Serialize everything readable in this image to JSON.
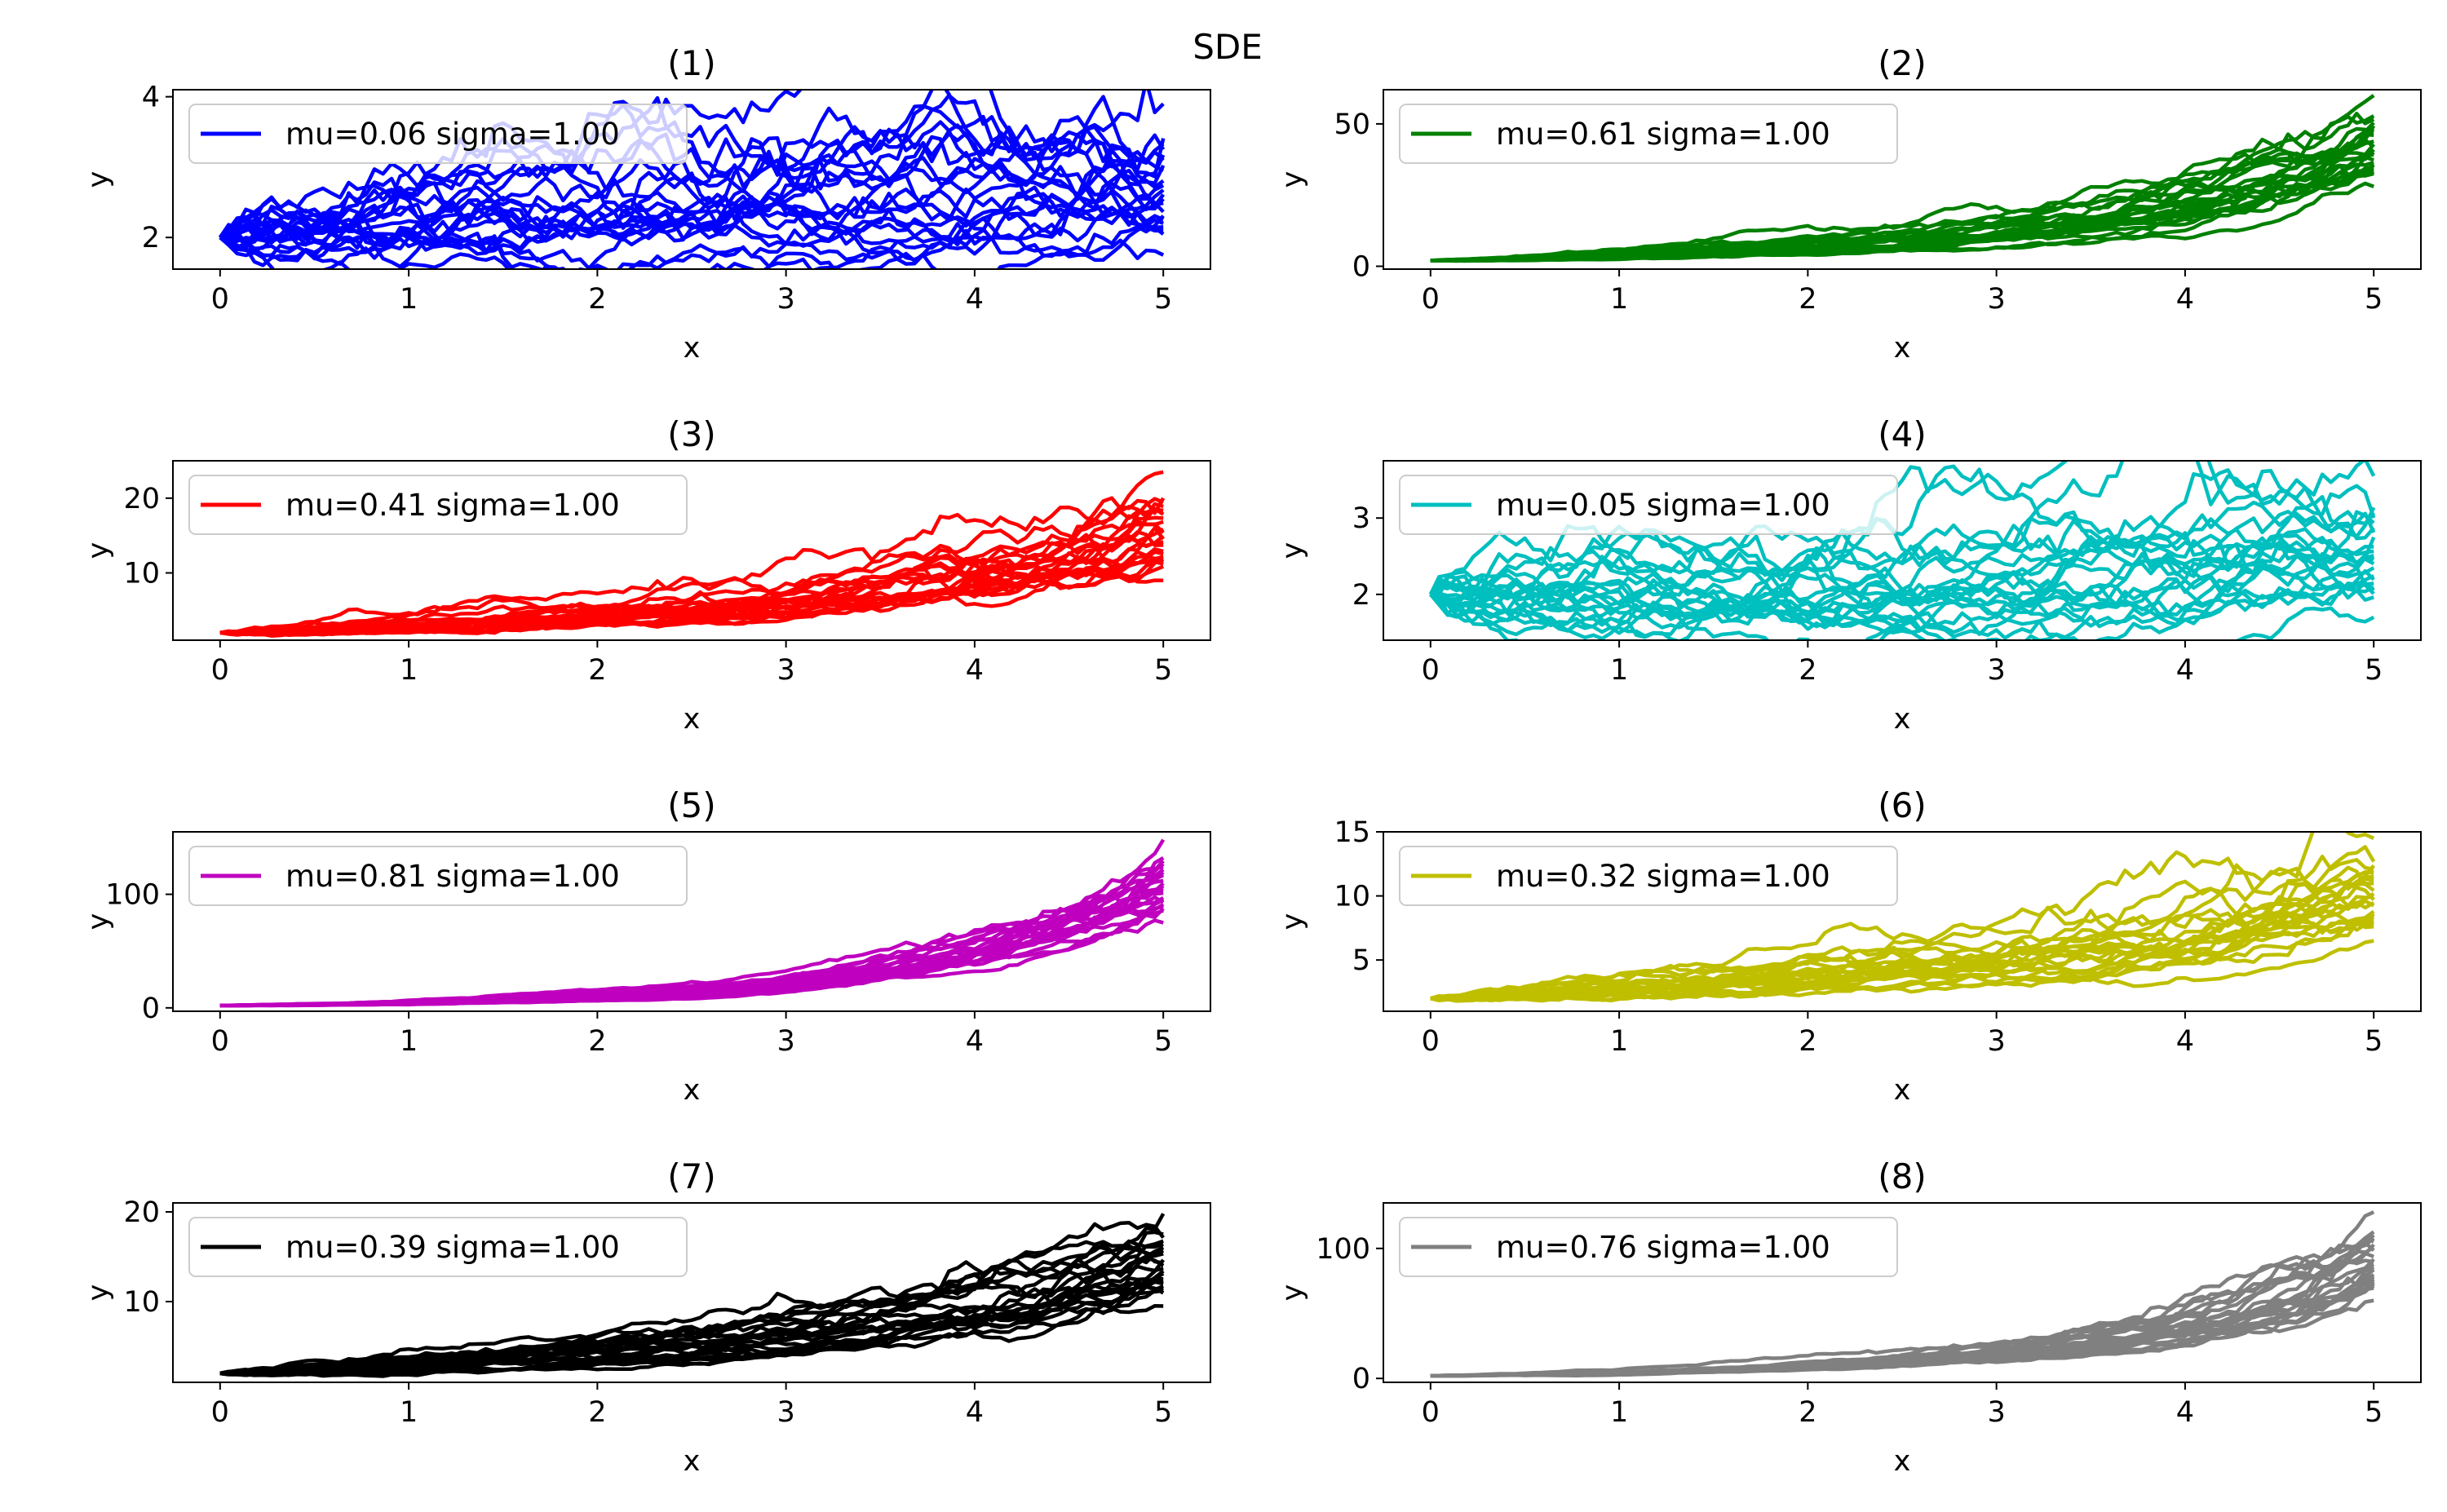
{
  "figure": {
    "title": "SDE"
  },
  "chart_data": [
    {
      "type": "line",
      "title": "(1)",
      "xlabel": "x",
      "ylabel": "y",
      "xlim": [
        -0.25,
        5.25
      ],
      "ylim": [
        1.55,
        4.1
      ],
      "xticks": [
        "0",
        "1",
        "2",
        "3",
        "4",
        "5"
      ],
      "yticks": [
        "2",
        "4"
      ],
      "yticks_values": [
        2,
        4
      ],
      "legend": "top-left",
      "color": "#0000ff",
      "series": [
        {
          "name": "mu=0.06 sigma=1.00",
          "x0": 0,
          "y0": 2.0,
          "end_max": 3.9,
          "end_min": 1.75,
          "end_median": 2.7
        }
      ]
    },
    {
      "type": "line",
      "title": "(2)",
      "xlabel": "x",
      "ylabel": "y",
      "xlim": [
        -0.25,
        5.25
      ],
      "ylim": [
        -1,
        62
      ],
      "xticks": [
        "0",
        "1",
        "2",
        "3",
        "4",
        "5"
      ],
      "yticks": [
        "0",
        "50"
      ],
      "yticks_values": [
        0,
        50
      ],
      "legend": "top-left",
      "color": "#008000",
      "series": [
        {
          "name": "mu=0.61 sigma=1.00",
          "x0": 0,
          "y0": 2.0,
          "end_max": 60,
          "end_min": 28,
          "end_median": 42
        }
      ]
    },
    {
      "type": "line",
      "title": "(3)",
      "xlabel": "x",
      "ylabel": "y",
      "xlim": [
        -0.25,
        5.25
      ],
      "ylim": [
        1,
        25
      ],
      "xticks": [
        "0",
        "1",
        "2",
        "3",
        "4",
        "5"
      ],
      "yticks": [
        "10",
        "20"
      ],
      "yticks_values": [
        10,
        20
      ],
      "legend": "top-left",
      "color": "#ff0000",
      "series": [
        {
          "name": "mu=0.41 sigma=1.00",
          "x0": 0,
          "y0": 2.0,
          "end_max": 23.5,
          "end_min": 9,
          "end_median": 15
        }
      ]
    },
    {
      "type": "line",
      "title": "(4)",
      "xlabel": "x",
      "ylabel": "y",
      "xlim": [
        -0.25,
        5.25
      ],
      "ylim": [
        1.4,
        3.75
      ],
      "xticks": [
        "0",
        "1",
        "2",
        "3",
        "4",
        "5"
      ],
      "yticks": [
        "2",
        "3"
      ],
      "yticks_values": [
        2,
        3
      ],
      "legend": "top-left",
      "color": "#00bfbf",
      "series": [
        {
          "name": "mu=0.05 sigma=1.00",
          "x0": 0,
          "y0": 2.0,
          "end_max": 3.55,
          "end_min": 1.7,
          "end_median": 2.5
        }
      ]
    },
    {
      "type": "line",
      "title": "(5)",
      "xlabel": "x",
      "ylabel": "y",
      "xlim": [
        -0.25,
        5.25
      ],
      "ylim": [
        -3,
        155
      ],
      "xticks": [
        "0",
        "1",
        "2",
        "3",
        "4",
        "5"
      ],
      "yticks": [
        "0",
        "100"
      ],
      "yticks_values": [
        0,
        100
      ],
      "legend": "top-left",
      "color": "#bf00bf",
      "series": [
        {
          "name": "mu=0.81 sigma=1.00",
          "x0": 0,
          "y0": 2.0,
          "end_max": 148,
          "end_min": 75,
          "end_median": 105
        }
      ]
    },
    {
      "type": "line",
      "title": "(6)",
      "xlabel": "x",
      "ylabel": "y",
      "xlim": [
        -0.25,
        5.25
      ],
      "ylim": [
        1,
        15
      ],
      "xticks": [
        "0",
        "1",
        "2",
        "3",
        "4",
        "5"
      ],
      "yticks": [
        "5",
        "10",
        "15"
      ],
      "yticks_values": [
        5,
        10,
        15
      ],
      "legend": "top-left",
      "color": "#bfbf00",
      "series": [
        {
          "name": "mu=0.32 sigma=1.00",
          "x0": 0,
          "y0": 2.0,
          "end_max": 14.5,
          "end_min": 6.5,
          "end_median": 10
        }
      ]
    },
    {
      "type": "line",
      "title": "(7)",
      "xlabel": "x",
      "ylabel": "y",
      "xlim": [
        -0.25,
        5.25
      ],
      "ylim": [
        1,
        21
      ],
      "xticks": [
        "0",
        "1",
        "2",
        "3",
        "4",
        "5"
      ],
      "yticks": [
        "10",
        "20"
      ],
      "yticks_values": [
        10,
        20
      ],
      "legend": "top-left",
      "color": "#000000",
      "series": [
        {
          "name": "mu=0.39 sigma=1.00",
          "x0": 0,
          "y0": 2.0,
          "end_max": 19.8,
          "end_min": 9.5,
          "end_median": 14
        }
      ]
    },
    {
      "type": "line",
      "title": "(8)",
      "xlabel": "x",
      "ylabel": "y",
      "xlim": [
        -0.25,
        5.25
      ],
      "ylim": [
        -3,
        135
      ],
      "xticks": [
        "0",
        "1",
        "2",
        "3",
        "4",
        "5"
      ],
      "yticks": [
        "0",
        "100"
      ],
      "yticks_values": [
        0,
        100
      ],
      "legend": "top-left",
      "color": "#808080",
      "series": [
        {
          "name": "mu=0.76 sigma=1.00",
          "x0": 0,
          "y0": 2.0,
          "end_max": 128,
          "end_min": 60,
          "end_median": 88
        }
      ]
    }
  ]
}
